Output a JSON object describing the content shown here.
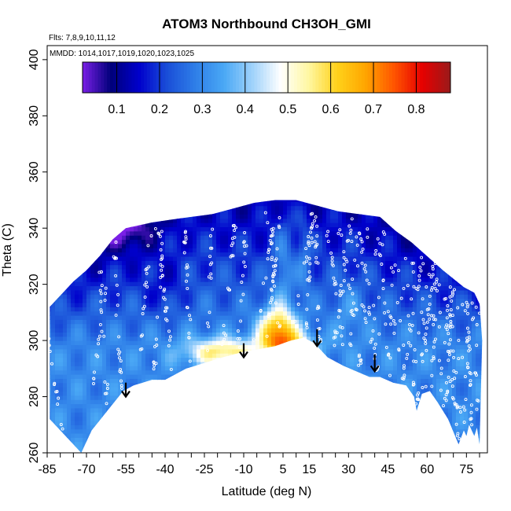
{
  "chart_data": {
    "type": "heatmap",
    "title": "ATOM3 Northbound CH3OH_GMI",
    "flights_note": "Flts: 7,8,9,10,11,12",
    "dates_note": "MMDD: 1014,1017,1019,1020,1023,1025",
    "xlabel": "Latitude (deg N)",
    "ylabel": "Theta (C)",
    "xlim": [
      -85,
      83
    ],
    "ylim": [
      260,
      405
    ],
    "x_ticks": [
      -85,
      -70,
      -55,
      -40,
      -25,
      -10,
      5,
      15,
      30,
      45,
      60,
      75
    ],
    "y_ticks": [
      260,
      280,
      300,
      320,
      340,
      360,
      380,
      400
    ],
    "colorbar": {
      "range": [
        0.02,
        0.88
      ],
      "ticks": [
        0.1,
        0.2,
        0.3,
        0.4,
        0.5,
        0.6,
        0.7,
        0.8
      ],
      "colors": [
        "#7a1fe6",
        "#00007a",
        "#0000cc",
        "#1a4fd8",
        "#2f7fe8",
        "#4aa8f5",
        "#9fd2fb",
        "#ffffff",
        "#fff7a0",
        "#ffd21a",
        "#ffa500",
        "#ff5500",
        "#e60000",
        "#9a1a1a"
      ]
    },
    "surface_boundary": [
      [
        -72,
        260
      ],
      [
        -68,
        268
      ],
      [
        -62,
        275
      ],
      [
        -56,
        282
      ],
      [
        -52,
        284
      ],
      [
        -45,
        286
      ],
      [
        -40,
        286
      ],
      [
        -32,
        290
      ],
      [
        -25,
        292
      ],
      [
        -18,
        294
      ],
      [
        -10,
        296
      ],
      [
        -4,
        297
      ],
      [
        2,
        298
      ],
      [
        8,
        300
      ],
      [
        13,
        301
      ],
      [
        17,
        299
      ],
      [
        22,
        294
      ],
      [
        28,
        291
      ],
      [
        33,
        289
      ],
      [
        38,
        287
      ],
      [
        42,
        287
      ],
      [
        47,
        285
      ],
      [
        52,
        284
      ],
      [
        55,
        280
      ],
      [
        56,
        275
      ],
      [
        58,
        281
      ],
      [
        61,
        282
      ],
      [
        64,
        278
      ],
      [
        68,
        272
      ],
      [
        72,
        263
      ],
      [
        74,
        268
      ],
      [
        75,
        266
      ],
      [
        76,
        270
      ],
      [
        78,
        266
      ],
      [
        79,
        269
      ],
      [
        80,
        263
      ]
    ],
    "top_boundary": [
      [
        -84,
        312
      ],
      [
        -80,
        316
      ],
      [
        -75,
        321
      ],
      [
        -70,
        325
      ],
      [
        -65,
        330
      ],
      [
        -60,
        336
      ],
      [
        -55,
        340
      ],
      [
        -50,
        341
      ],
      [
        -45,
        342
      ],
      [
        -38,
        343
      ],
      [
        -30,
        344
      ],
      [
        -22,
        345
      ],
      [
        -14,
        347
      ],
      [
        -6,
        349
      ],
      [
        2,
        350
      ],
      [
        10,
        350
      ],
      [
        18,
        348
      ],
      [
        26,
        346
      ],
      [
        34,
        345
      ],
      [
        42,
        344
      ],
      [
        48,
        339
      ],
      [
        54,
        335
      ],
      [
        60,
        330
      ],
      [
        66,
        325
      ],
      [
        70,
        322
      ],
      [
        74,
        319
      ],
      [
        78,
        317
      ],
      [
        80,
        313
      ],
      [
        81,
        300
      ]
    ],
    "bottom_edge_limit": [
      -84,
      272
    ],
    "features": [
      {
        "label": "high CH3OH plume",
        "lat": 2,
        "theta": 304,
        "value": 0.68
      },
      {
        "label": "enhanced band",
        "lat": -18,
        "theta": 296,
        "value": 0.58
      },
      {
        "label": "low-value pocket",
        "lat": -55,
        "theta": 340,
        "value": 0.08
      }
    ],
    "arrows": [
      {
        "lat": -55,
        "theta_top": 285,
        "theta_tip": 280
      },
      {
        "lat": -10,
        "theta_top": 299,
        "theta_tip": 294
      },
      {
        "lat": 18,
        "theta_top": 304,
        "theta_tip": 298
      },
      {
        "lat": 40,
        "theta_top": 295,
        "theta_tip": 289
      }
    ]
  }
}
